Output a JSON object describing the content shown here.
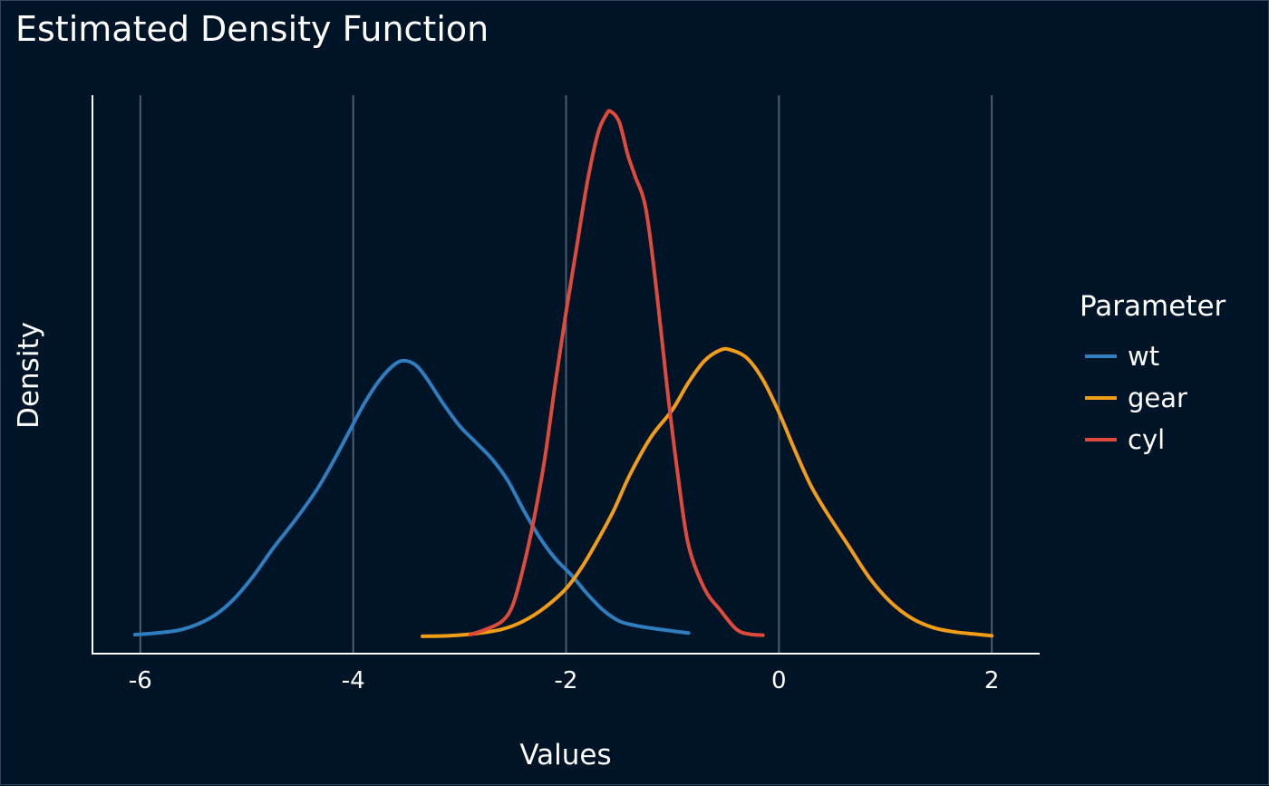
{
  "chart_data": {
    "type": "line",
    "title": "Estimated Density Function",
    "xlabel": "Values",
    "ylabel": "Density",
    "xlim": [
      -6.45,
      2.45
    ],
    "ylim": [
      -0.03,
      1.0
    ],
    "x_ticks": [
      -6,
      -4,
      -2,
      0,
      2
    ],
    "x_tick_labels": [
      "-6",
      "-4",
      "-2",
      "0",
      "2"
    ],
    "y_ticks_shown": false,
    "grid": "vertical-major",
    "legend": {
      "title": "Parameter",
      "position": "right"
    },
    "series": [
      {
        "name": "wt",
        "color": "#2E7EC0",
        "x": [
          -6.05,
          -5.85,
          -5.6,
          -5.35,
          -5.15,
          -4.95,
          -4.75,
          -4.55,
          -4.35,
          -4.2,
          -4.05,
          -3.9,
          -3.75,
          -3.6,
          -3.5,
          -3.4,
          -3.3,
          -3.15,
          -3.0,
          -2.85,
          -2.7,
          -2.55,
          -2.4,
          -2.25,
          -2.1,
          -1.95,
          -1.8,
          -1.65,
          -1.5,
          -1.35,
          -1.2,
          -1.05,
          -0.85
        ],
        "y": [
          0.005,
          0.008,
          0.015,
          0.035,
          0.065,
          0.11,
          0.165,
          0.215,
          0.27,
          0.32,
          0.375,
          0.43,
          0.475,
          0.505,
          0.51,
          0.5,
          0.475,
          0.43,
          0.39,
          0.36,
          0.33,
          0.29,
          0.235,
          0.185,
          0.145,
          0.115,
          0.08,
          0.05,
          0.03,
          0.022,
          0.017,
          0.013,
          0.008
        ]
      },
      {
        "name": "gear",
        "color": "#F39C16",
        "x": [
          -3.35,
          -3.1,
          -2.85,
          -2.6,
          -2.4,
          -2.2,
          -2.0,
          -1.85,
          -1.7,
          -1.55,
          -1.4,
          -1.2,
          -1.0,
          -0.85,
          -0.7,
          -0.55,
          -0.45,
          -0.3,
          -0.15,
          0.0,
          0.15,
          0.3,
          0.45,
          0.65,
          0.85,
          1.05,
          1.25,
          1.45,
          1.65,
          1.85,
          2.0
        ],
        "y": [
          0.002,
          0.003,
          0.007,
          0.015,
          0.03,
          0.055,
          0.09,
          0.13,
          0.18,
          0.235,
          0.3,
          0.37,
          0.42,
          0.47,
          0.51,
          0.53,
          0.53,
          0.515,
          0.475,
          0.415,
          0.345,
          0.28,
          0.23,
          0.17,
          0.11,
          0.065,
          0.035,
          0.018,
          0.01,
          0.006,
          0.003
        ]
      },
      {
        "name": "cyl",
        "color": "#E04A3A",
        "x": [
          -2.9,
          -2.75,
          -2.6,
          -2.5,
          -2.4,
          -2.3,
          -2.2,
          -2.1,
          -2.0,
          -1.9,
          -1.8,
          -1.7,
          -1.62,
          -1.58,
          -1.5,
          -1.42,
          -1.35,
          -1.25,
          -1.15,
          -1.05,
          -0.95,
          -0.85,
          -0.7,
          -0.55,
          -0.4,
          -0.28,
          -0.15
        ],
        "y": [
          0.005,
          0.015,
          0.03,
          0.06,
          0.13,
          0.22,
          0.33,
          0.47,
          0.6,
          0.72,
          0.84,
          0.93,
          0.965,
          0.97,
          0.95,
          0.89,
          0.85,
          0.79,
          0.64,
          0.46,
          0.3,
          0.17,
          0.09,
          0.05,
          0.015,
          0.006,
          0.004
        ]
      }
    ]
  }
}
